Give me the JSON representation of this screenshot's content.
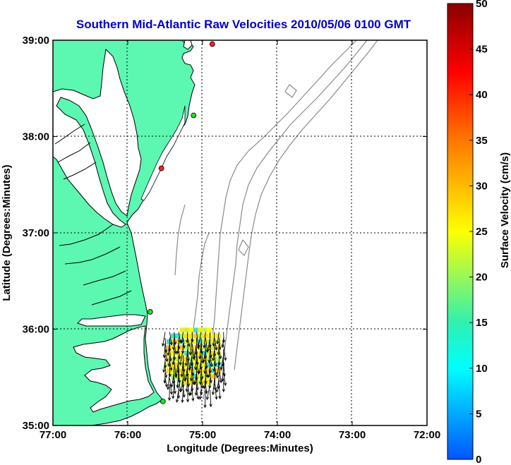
{
  "title": "Southern Mid-Atlantic Raw Velocities 2010/05/06 0100 GMT",
  "map": {
    "xlabel": "Longitude (Degrees:Minutes)",
    "ylabel": "Latitude (Degrees:Minutes)",
    "lon_range": [
      -77,
      -72
    ],
    "lat_range": [
      35,
      39
    ],
    "x_ticks": [
      {
        "value": -77,
        "label": "77:00"
      },
      {
        "value": -76,
        "label": "76:00"
      },
      {
        "value": -75,
        "label": "75:00"
      },
      {
        "value": -74,
        "label": "74:00"
      },
      {
        "value": -73,
        "label": "73:00"
      },
      {
        "value": -72,
        "label": "72:00"
      }
    ],
    "y_ticks": [
      {
        "value": 39,
        "label": "39:00"
      },
      {
        "value": 38,
        "label": "38:00"
      },
      {
        "value": 37,
        "label": "37:00"
      },
      {
        "value": 36,
        "label": "36:00"
      },
      {
        "value": 35,
        "label": "35:00"
      }
    ],
    "grid": true,
    "land_color": "#5cf7b1",
    "water_color": "#ffffff",
    "coast_color": "#000000",
    "bathymetry_color": "#8a8a8a",
    "stations": [
      {
        "lon": -74.87,
        "lat": 38.96,
        "status": "red"
      },
      {
        "lon": -75.12,
        "lat": 38.22,
        "status": "green"
      },
      {
        "lon": -75.55,
        "lat": 37.67,
        "status": "red"
      },
      {
        "lon": -75.7,
        "lat": 36.18,
        "status": "green"
      },
      {
        "lon": -75.53,
        "lat": 35.25,
        "status": "green"
      }
    ],
    "velocity_field": {
      "lon": [
        -75.45,
        -74.75
      ],
      "lat": [
        35.45,
        36.0
      ],
      "spacing": 0.06
    }
  },
  "colorbar": {
    "label": "Surface Velocity (cm/s)",
    "min": 0,
    "max": 50,
    "ticks": [
      {
        "value": 0,
        "label": "0"
      },
      {
        "value": 5,
        "label": "5"
      },
      {
        "value": 10,
        "label": "10"
      },
      {
        "value": 15,
        "label": "15"
      },
      {
        "value": 20,
        "label": "20"
      },
      {
        "value": 25,
        "label": "25"
      },
      {
        "value": 30,
        "label": "30"
      },
      {
        "value": 35,
        "label": "35"
      },
      {
        "value": 40,
        "label": "40"
      },
      {
        "value": 45,
        "label": "45"
      },
      {
        "value": 50,
        "label": "50"
      }
    ]
  }
}
